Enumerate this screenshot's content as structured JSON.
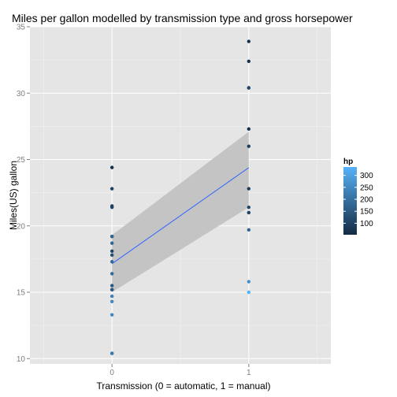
{
  "chart_data": {
    "type": "scatter",
    "title": "Miles per gallon modelled by transmission type and gross horsepower",
    "xlabel": "Transmission (0 = automatic, 1 = manual)",
    "ylabel": "Miles(US) gallon",
    "xlim": [
      -0.6,
      1.6
    ],
    "ylim": [
      9.6,
      35
    ],
    "x_ticks": [
      0,
      1
    ],
    "y_ticks": [
      10,
      15,
      20,
      25,
      30,
      35
    ],
    "grid": true,
    "colors": {
      "panel_bg": "#e5e5e5",
      "grid_major": "#ffffff",
      "grid_minor": "#f2f2f2",
      "ribbon": "#c4c4c4",
      "fit_line": "#3366ff",
      "hp_low": "#132b43",
      "hp_high": "#56b1f7"
    },
    "legend": {
      "title": "hp",
      "placement": "right",
      "ticks": [
        100,
        150,
        200,
        250,
        300
      ],
      "range": [
        52,
        335
      ]
    },
    "points": [
      {
        "x": 0,
        "y": 21.4,
        "hp": 110
      },
      {
        "x": 0,
        "y": 18.7,
        "hp": 175
      },
      {
        "x": 0,
        "y": 18.1,
        "hp": 105
      },
      {
        "x": 0,
        "y": 14.3,
        "hp": 245
      },
      {
        "x": 0,
        "y": 24.4,
        "hp": 62
      },
      {
        "x": 0,
        "y": 22.8,
        "hp": 95
      },
      {
        "x": 0,
        "y": 19.2,
        "hp": 123
      },
      {
        "x": 0,
        "y": 17.8,
        "hp": 123
      },
      {
        "x": 0,
        "y": 16.4,
        "hp": 180
      },
      {
        "x": 0,
        "y": 17.3,
        "hp": 180
      },
      {
        "x": 0,
        "y": 15.2,
        "hp": 180
      },
      {
        "x": 0,
        "y": 10.4,
        "hp": 205
      },
      {
        "x": 0,
        "y": 10.4,
        "hp": 215
      },
      {
        "x": 0,
        "y": 14.7,
        "hp": 230
      },
      {
        "x": 0,
        "y": 21.5,
        "hp": 97
      },
      {
        "x": 0,
        "y": 15.5,
        "hp": 150
      },
      {
        "x": 0,
        "y": 15.2,
        "hp": 150
      },
      {
        "x": 0,
        "y": 13.3,
        "hp": 245
      },
      {
        "x": 0,
        "y": 19.2,
        "hp": 175
      },
      {
        "x": 1,
        "y": 21.0,
        "hp": 110
      },
      {
        "x": 1,
        "y": 21.0,
        "hp": 110
      },
      {
        "x": 1,
        "y": 22.8,
        "hp": 93
      },
      {
        "x": 1,
        "y": 32.4,
        "hp": 66
      },
      {
        "x": 1,
        "y": 30.4,
        "hp": 52
      },
      {
        "x": 1,
        "y": 33.9,
        "hp": 65
      },
      {
        "x": 1,
        "y": 27.3,
        "hp": 66
      },
      {
        "x": 1,
        "y": 26.0,
        "hp": 91
      },
      {
        "x": 1,
        "y": 30.4,
        "hp": 113
      },
      {
        "x": 1,
        "y": 15.8,
        "hp": 264
      },
      {
        "x": 1,
        "y": 19.7,
        "hp": 175
      },
      {
        "x": 1,
        "y": 15.0,
        "hp": 335
      },
      {
        "x": 1,
        "y": 21.4,
        "hp": 109
      }
    ],
    "fit": {
      "x": [
        0,
        1
      ],
      "y": [
        17.15,
        24.39
      ],
      "ymin": [
        15.0,
        21.4
      ],
      "ymax": [
        19.3,
        27.1
      ]
    }
  }
}
